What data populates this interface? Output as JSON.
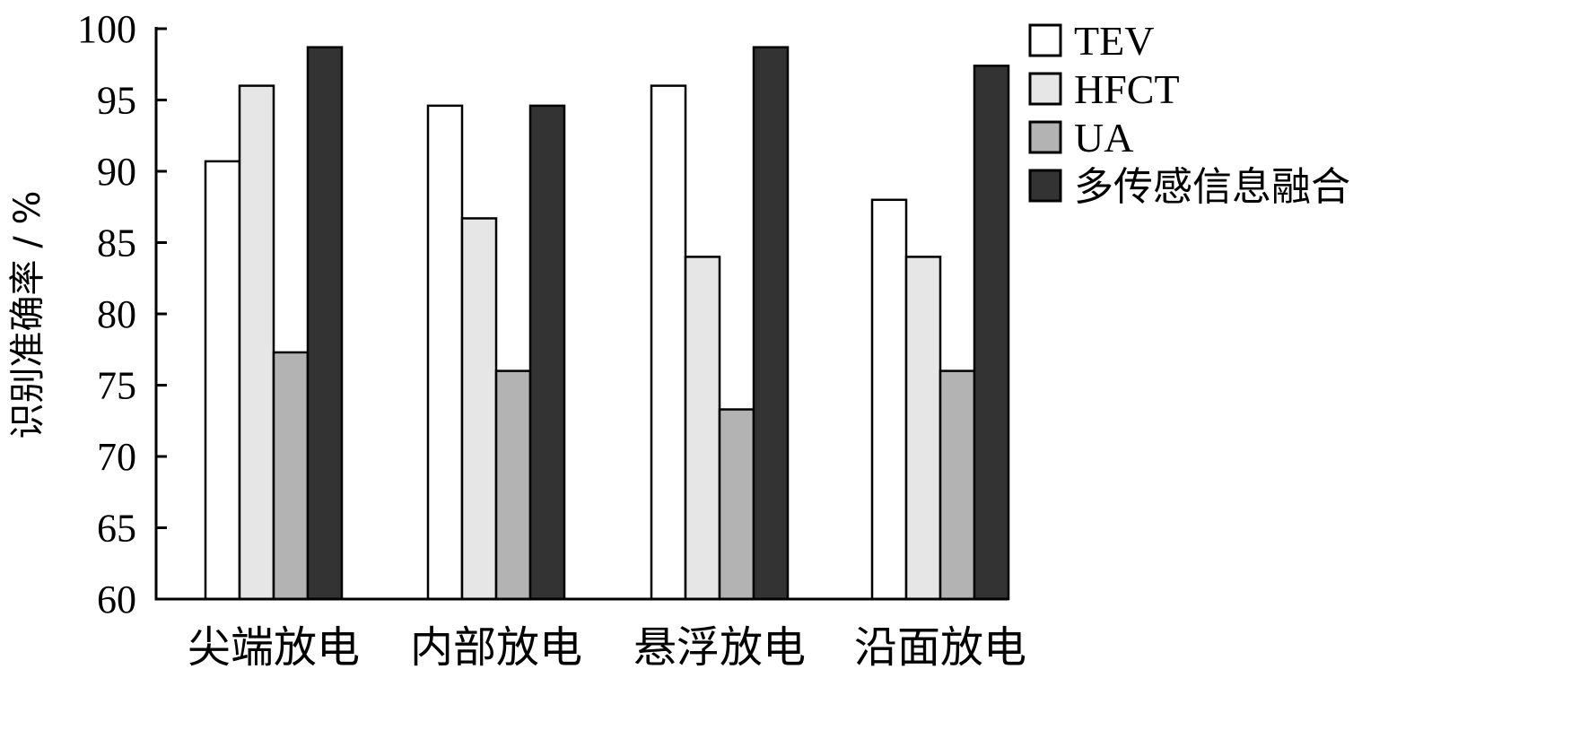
{
  "chart_data": {
    "type": "bar",
    "title": "",
    "xlabel": "",
    "ylabel": "识别准确率 / %",
    "ylim": [
      60,
      100
    ],
    "yticks": [
      60,
      65,
      70,
      75,
      80,
      85,
      90,
      95,
      100
    ],
    "grid": false,
    "legend_position": "top-right",
    "categories": [
      "尖端放电",
      "内部放电",
      "悬浮放电",
      "沿面放电"
    ],
    "series": [
      {
        "name": "TEV",
        "color": "#ffffff",
        "values": [
          90.7,
          94.6,
          96.0,
          88.0
        ]
      },
      {
        "name": "HFCT",
        "color": "#e6e6e6",
        "values": [
          96.0,
          86.7,
          84.0,
          84.0
        ]
      },
      {
        "name": "UA",
        "color": "#b3b3b3",
        "values": [
          77.3,
          76.0,
          73.3,
          76.0
        ]
      },
      {
        "name": "多传感信息融合",
        "color": "#333333",
        "values": [
          98.7,
          94.6,
          98.7,
          97.4
        ]
      }
    ]
  }
}
